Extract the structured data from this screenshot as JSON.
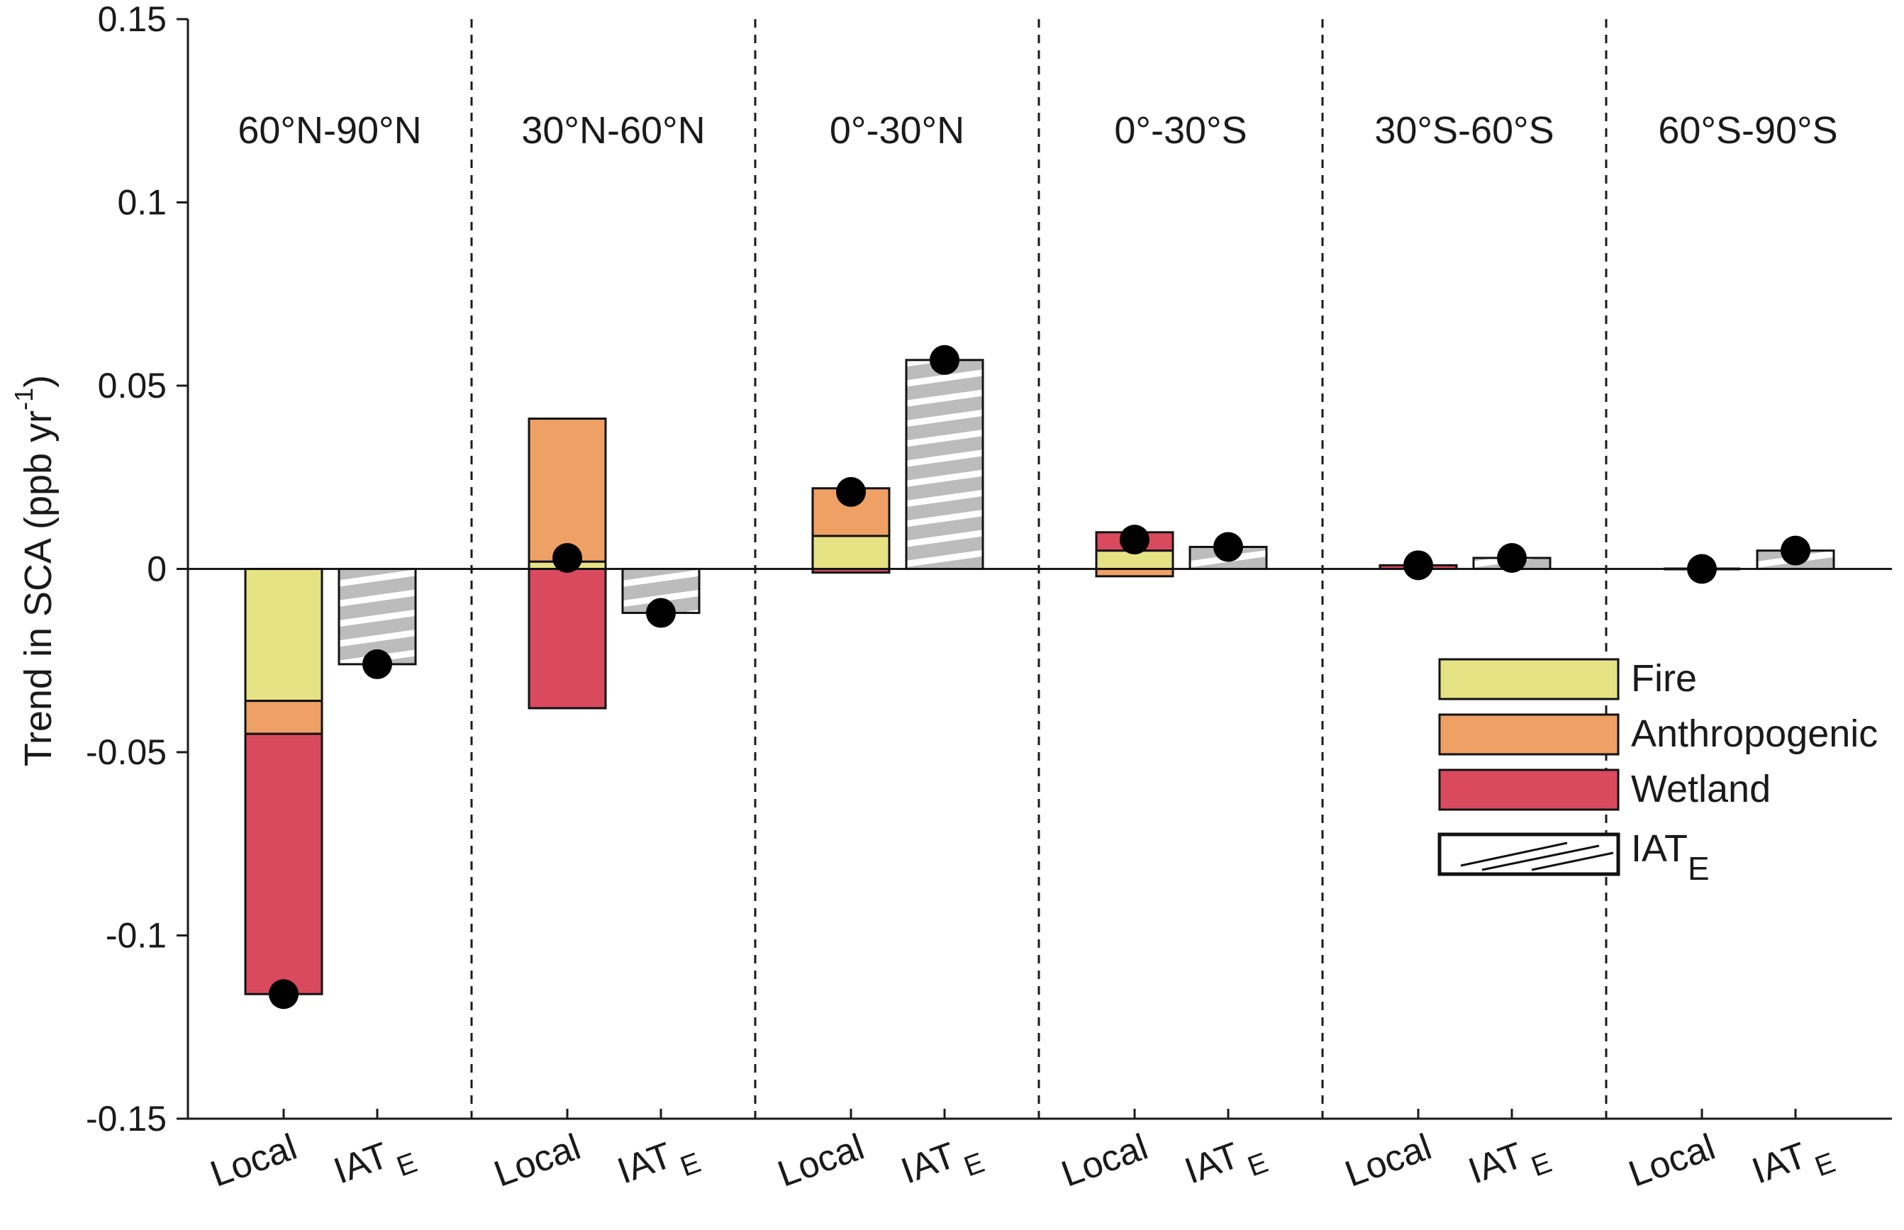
{
  "chart_data": {
    "type": "bar",
    "stacked": true,
    "ylabel": "Trend in SCA (ppb yr",
    "ylabel_sup": "-1",
    "ylabel_close": ")",
    "ylim": [
      -0.15,
      0.15
    ],
    "yticks": [
      {
        "value": 0.15,
        "label": "0.15"
      },
      {
        "value": 0.1,
        "label": "0.1"
      },
      {
        "value": 0.05,
        "label": "0.05"
      },
      {
        "value": 0,
        "label": "0"
      },
      {
        "value": -0.05,
        "label": "-0.05"
      },
      {
        "value": -0.1,
        "label": "-0.1"
      },
      {
        "value": -0.15,
        "label": "-0.15"
      }
    ],
    "xtick_local": "Local",
    "xtick_iat_main": "IAT",
    "xtick_iat_sub": "E",
    "regions": [
      {
        "label": "60°N-90°N",
        "local": {
          "fire": -0.036,
          "anthropogenic": -0.009,
          "wetland": -0.071,
          "net": -0.116
        },
        "iat": {
          "value": -0.026,
          "dot": -0.026
        }
      },
      {
        "label": "30°N-60°N",
        "local": {
          "fire": 0.002,
          "anthropogenic": 0.039,
          "wetland": -0.038,
          "net": 0.003
        },
        "iat": {
          "value": -0.012,
          "dot": -0.012
        }
      },
      {
        "label": "0°-30°N",
        "local": {
          "fire": 0.009,
          "anthropogenic": 0.013,
          "wetland": -0.001,
          "net": 0.021
        },
        "iat": {
          "value": 0.057,
          "dot": 0.057
        }
      },
      {
        "label": "0°-30°S",
        "local": {
          "fire": 0.005,
          "anthropogenic": -0.002,
          "wetland": 0.005,
          "net": 0.008
        },
        "iat": {
          "value": 0.006,
          "dot": 0.006
        }
      },
      {
        "label": "30°S-60°S",
        "local": {
          "fire": 0.0,
          "anthropogenic": 0.0,
          "wetland": 0.001,
          "net": 0.001
        },
        "iat": {
          "value": 0.003,
          "dot": 0.003
        }
      },
      {
        "label": "60°S-90°S",
        "local": {
          "fire": 0.0,
          "anthropogenic": 0.0,
          "wetland": 0.0,
          "net": 0.0
        },
        "iat": {
          "value": 0.005,
          "dot": 0.005
        }
      }
    ],
    "legend": {
      "position": "right",
      "entries": [
        {
          "key": "fire",
          "label": "Fire"
        },
        {
          "key": "anthropogenic",
          "label": "Anthropogenic"
        },
        {
          "key": "wetland",
          "label": "Wetland"
        },
        {
          "key": "iat",
          "label": "IAT",
          "sub": "E"
        }
      ]
    },
    "colors": {
      "fire": "#e6e384",
      "anthropogenic": "#eea065",
      "wetland": "#d94a5e",
      "iat_fill": "#b8b8b8",
      "iat_stripe": "#ffffff",
      "dot": "#000000",
      "axis": "#1a1a1a"
    }
  }
}
